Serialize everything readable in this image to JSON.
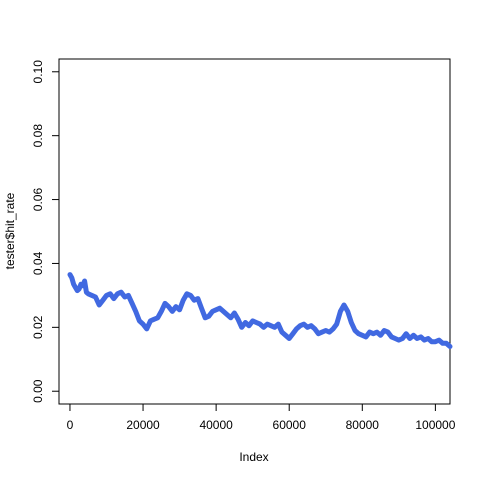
{
  "chart_data": {
    "type": "line",
    "xlabel": "Index",
    "ylabel": "tester$hit_rate",
    "xlim": [
      -3000,
      104000
    ],
    "ylim": [
      -0.004,
      0.104
    ],
    "x_ticks": [
      0,
      20000,
      40000,
      60000,
      80000,
      100000
    ],
    "x_tick_labels": [
      "0",
      "20000",
      "40000",
      "60000",
      "80000",
      "100000"
    ],
    "y_ticks": [
      0.0,
      0.02,
      0.04,
      0.06,
      0.08,
      0.1
    ],
    "y_tick_labels": [
      "0.00",
      "0.02",
      "0.04",
      "0.06",
      "0.08",
      "0.10"
    ],
    "series": [
      {
        "color": "#4169E1",
        "x": [
          0,
          500,
          1000,
          1500,
          2000,
          2500,
          3000,
          3500,
          4000,
          4500,
          5000,
          6000,
          7000,
          8000,
          9000,
          10000,
          11000,
          12000,
          13000,
          14000,
          15000,
          16000,
          17000,
          18000,
          19000,
          20000,
          21000,
          22000,
          23000,
          24000,
          25000,
          26000,
          27000,
          28000,
          29000,
          30000,
          31000,
          32000,
          33000,
          34000,
          35000,
          36000,
          37000,
          38000,
          39000,
          40000,
          41000,
          42000,
          43000,
          44000,
          45000,
          46000,
          47000,
          48000,
          49000,
          50000,
          51000,
          52000,
          53000,
          54000,
          55000,
          56000,
          57000,
          58000,
          59000,
          60000,
          61000,
          62000,
          63000,
          64000,
          65000,
          66000,
          67000,
          68000,
          69000,
          70000,
          71000,
          72000,
          73000,
          74000,
          75000,
          76000,
          77000,
          78000,
          79000,
          80000,
          81000,
          82000,
          83000,
          84000,
          85000,
          86000,
          87000,
          88000,
          89000,
          90000,
          91000,
          92000,
          93000,
          94000,
          95000,
          96000,
          97000,
          98000,
          99000,
          100000,
          101000,
          102000,
          103000,
          104000
        ],
        "values": [
          0.0365,
          0.0355,
          0.0335,
          0.0325,
          0.0315,
          0.032,
          0.0335,
          0.033,
          0.0345,
          0.031,
          0.0305,
          0.03,
          0.0295,
          0.027,
          0.0285,
          0.03,
          0.0305,
          0.029,
          0.0305,
          0.031,
          0.0295,
          0.03,
          0.0275,
          0.025,
          0.022,
          0.021,
          0.0195,
          0.022,
          0.0225,
          0.023,
          0.025,
          0.0275,
          0.0265,
          0.025,
          0.0265,
          0.0255,
          0.0285,
          0.0305,
          0.03,
          0.0285,
          0.029,
          0.026,
          0.023,
          0.0235,
          0.025,
          0.0255,
          0.026,
          0.025,
          0.024,
          0.023,
          0.0245,
          0.0225,
          0.02,
          0.0215,
          0.0205,
          0.022,
          0.0215,
          0.021,
          0.02,
          0.021,
          0.0205,
          0.02,
          0.021,
          0.0185,
          0.0175,
          0.0165,
          0.018,
          0.0195,
          0.0205,
          0.021,
          0.02,
          0.0205,
          0.0195,
          0.018,
          0.0185,
          0.019,
          0.0185,
          0.0195,
          0.021,
          0.025,
          0.027,
          0.025,
          0.0215,
          0.019,
          0.018,
          0.0175,
          0.017,
          0.0185,
          0.018,
          0.0185,
          0.0175,
          0.019,
          0.0185,
          0.017,
          0.0165,
          0.016,
          0.0165,
          0.018,
          0.0165,
          0.0175,
          0.0165,
          0.017,
          0.016,
          0.0165,
          0.0155,
          0.0155,
          0.016,
          0.015,
          0.015,
          0.014
        ]
      }
    ]
  }
}
